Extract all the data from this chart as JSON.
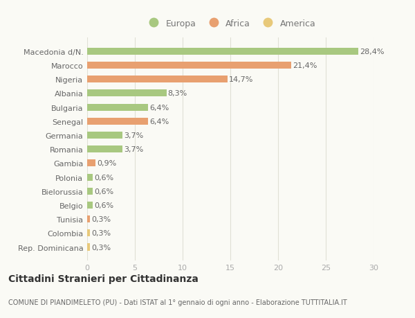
{
  "categories": [
    "Rep. Dominicana",
    "Colombia",
    "Tunisia",
    "Belgio",
    "Bielorussia",
    "Polonia",
    "Gambia",
    "Romania",
    "Germania",
    "Senegal",
    "Bulgaria",
    "Albania",
    "Nigeria",
    "Marocco",
    "Macedonia d/N."
  ],
  "values": [
    0.3,
    0.3,
    0.3,
    0.6,
    0.6,
    0.6,
    0.9,
    3.7,
    3.7,
    6.4,
    6.4,
    8.3,
    14.7,
    21.4,
    28.4
  ],
  "labels": [
    "0,3%",
    "0,3%",
    "0,3%",
    "0,6%",
    "0,6%",
    "0,6%",
    "0,9%",
    "3,7%",
    "3,7%",
    "6,4%",
    "6,4%",
    "8,3%",
    "14,7%",
    "21,4%",
    "28,4%"
  ],
  "colors": [
    "#e8c97a",
    "#e8c97a",
    "#e8a070",
    "#a8c880",
    "#a8c880",
    "#a8c880",
    "#e8a070",
    "#a8c880",
    "#a8c880",
    "#e8a070",
    "#a8c880",
    "#a8c880",
    "#e8a070",
    "#e8a070",
    "#a8c880"
  ],
  "legend_labels": [
    "Europa",
    "Africa",
    "America"
  ],
  "legend_colors": [
    "#a8c880",
    "#e8a070",
    "#e8c97a"
  ],
  "title": "Cittadini Stranieri per Cittadinanza",
  "subtitle": "COMUNE DI PIANDIMELETO (PU) - Dati ISTAT al 1° gennaio di ogni anno - Elaborazione TUTTITALIA.IT",
  "xlim": [
    0,
    30
  ],
  "xticks": [
    0,
    5,
    10,
    15,
    20,
    25,
    30
  ],
  "background_color": "#fafaf5",
  "grid_color": "#e0e0d5",
  "bar_height": 0.5,
  "label_fontsize": 8,
  "title_fontsize": 10,
  "subtitle_fontsize": 7
}
